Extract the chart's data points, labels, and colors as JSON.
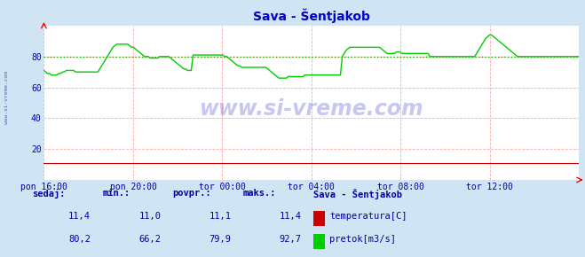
{
  "title": "Sava - Šentjakob",
  "bg_color": "#d0e4f4",
  "plot_bg_color": "#ffffff",
  "grid_color": "#ffaaaa",
  "avg_line_color": "#00bb00",
  "avg_line_value": 79.9,
  "x_labels": [
    "pon 16:00",
    "pon 20:00",
    "tor 00:00",
    "tor 04:00",
    "tor 08:00",
    "tor 12:00"
  ],
  "x_ticks_norm": [
    0.0,
    0.1667,
    0.3333,
    0.5,
    0.6667,
    0.8333
  ],
  "ylim": [
    0,
    100
  ],
  "yticks": [
    20,
    40,
    60,
    80
  ],
  "temp_color": "#cc0000",
  "flow_color": "#00cc00",
  "title_color": "#0000cc",
  "label_color": "#0000aa",
  "watermark_color": "#0000cc",
  "table_header_color": "#0000aa",
  "sedaj_label": "sedaj:",
  "min_label": "min.:",
  "povpr_label": "povpr.:",
  "maks_label": "maks.:",
  "station_label": "Sava - Šentjakob",
  "temp_label": "temperatura[C]",
  "flow_label": "pretok[m3/s]",
  "temp_sedaj": "11,4",
  "temp_min": "11,0",
  "temp_povpr": "11,1",
  "temp_maks": "11,4",
  "flow_sedaj": "80,2",
  "flow_min": "66,2",
  "flow_povpr": "79,9",
  "flow_maks": "92,7",
  "n_points": 288,
  "flow_data": [
    71,
    70,
    69,
    69,
    68,
    68,
    68,
    68,
    69,
    69,
    70,
    70,
    71,
    71,
    71,
    71,
    71,
    70,
    70,
    70,
    70,
    70,
    70,
    70,
    70,
    70,
    70,
    70,
    70,
    70,
    72,
    74,
    76,
    78,
    80,
    82,
    84,
    86,
    87,
    88,
    88,
    88,
    88,
    88,
    88,
    88,
    87,
    86,
    86,
    85,
    84,
    83,
    82,
    81,
    80,
    80,
    80,
    79,
    79,
    79,
    79,
    79,
    80,
    80,
    80,
    80,
    80,
    80,
    79,
    78,
    77,
    76,
    75,
    74,
    73,
    72,
    72,
    71,
    71,
    71,
    81,
    81,
    81,
    81,
    81,
    81,
    81,
    81,
    81,
    81,
    81,
    81,
    81,
    81,
    81,
    81,
    81,
    80,
    80,
    79,
    78,
    77,
    76,
    75,
    74,
    74,
    73,
    73,
    73,
    73,
    73,
    73,
    73,
    73,
    73,
    73,
    73,
    73,
    73,
    73,
    72,
    71,
    70,
    69,
    68,
    67,
    66,
    66,
    66,
    66,
    66,
    67,
    67,
    67,
    67,
    67,
    67,
    67,
    67,
    67,
    68,
    68,
    68,
    68,
    68,
    68,
    68,
    68,
    68,
    68,
    68,
    68,
    68,
    68,
    68,
    68,
    68,
    68,
    68,
    68,
    80,
    82,
    84,
    85,
    86,
    86,
    86,
    86,
    86,
    86,
    86,
    86,
    86,
    86,
    86,
    86,
    86,
    86,
    86,
    86,
    86,
    85,
    84,
    83,
    82,
    82,
    82,
    82,
    82,
    83,
    83,
    83,
    82,
    82,
    82,
    82,
    82,
    82,
    82,
    82,
    82,
    82,
    82,
    82,
    82,
    82,
    82,
    80,
    80,
    80,
    80,
    80,
    80,
    80,
    80,
    80,
    80,
    80,
    80,
    80,
    80,
    80,
    80,
    80,
    80,
    80,
    80,
    80,
    80,
    80,
    80,
    80,
    82,
    84,
    86,
    88,
    90,
    92,
    93,
    94,
    94,
    93,
    92,
    91,
    90,
    89,
    88,
    87,
    86,
    85,
    84,
    83,
    82,
    81,
    80,
    80,
    80,
    80,
    80,
    80,
    80,
    80,
    80,
    80,
    80,
    80,
    80,
    80,
    80,
    80,
    80,
    80,
    80,
    80,
    80,
    80,
    80,
    80,
    80,
    80,
    80,
    80,
    80,
    80,
    80,
    80,
    80,
    80
  ],
  "temp_data": [
    11,
    11,
    11,
    11,
    11,
    11,
    11,
    11,
    11,
    11,
    11,
    11,
    11,
    11,
    11,
    11,
    11,
    11,
    11,
    11,
    11,
    11,
    11,
    11,
    11,
    11,
    11,
    11,
    11,
    11,
    11,
    11,
    11,
    11,
    11,
    11,
    11,
    11,
    11,
    11,
    11,
    11,
    11,
    11,
    11,
    11,
    11,
    11,
    11,
    11,
    11,
    11,
    11,
    11,
    11,
    11,
    11,
    11,
    11,
    11,
    11,
    11,
    11,
    11,
    11,
    11,
    11,
    11,
    11,
    11,
    11,
    11,
    11,
    11,
    11,
    11,
    11,
    11,
    11,
    11,
    11,
    11,
    11,
    11,
    11,
    11,
    11,
    11,
    11,
    11,
    11,
    11,
    11,
    11,
    11,
    11,
    11,
    11,
    11,
    11,
    11,
    11,
    11,
    11,
    11,
    11,
    11,
    11,
    11,
    11,
    11,
    11,
    11,
    11,
    11,
    11,
    11,
    11,
    11,
    11,
    11,
    11,
    11,
    11,
    11,
    11,
    11,
    11,
    11,
    11,
    11,
    11,
    11,
    11,
    11,
    11,
    11,
    11,
    11,
    11,
    11,
    11,
    11,
    11,
    11,
    11,
    11,
    11,
    11,
    11,
    11,
    11,
    11,
    11,
    11,
    11,
    11,
    11,
    11,
    11,
    11,
    11,
    11,
    11,
    11,
    11,
    11,
    11,
    11,
    11,
    11,
    11,
    11,
    11,
    11,
    11,
    11,
    11,
    11,
    11,
    11,
    11,
    11,
    11,
    11,
    11,
    11,
    11,
    11,
    11,
    11,
    11,
    11,
    11,
    11,
    11,
    11,
    11,
    11,
    11,
    11,
    11,
    11,
    11,
    11,
    11,
    11,
    11,
    11,
    11,
    11,
    11,
    11,
    11,
    11,
    11,
    11,
    11,
    11,
    11,
    11,
    11,
    11,
    11,
    11,
    11,
    11,
    11,
    11,
    11,
    11,
    11,
    11,
    11,
    11,
    11,
    11,
    11,
    11,
    11,
    11,
    11,
    11,
    11,
    11,
    11,
    11,
    11,
    11,
    11,
    11,
    11,
    11,
    11,
    11,
    11,
    11,
    11,
    11,
    11,
    11,
    11,
    11,
    11,
    11,
    11,
    11,
    11,
    11,
    11,
    11,
    11,
    11,
    11,
    11,
    11,
    11,
    11,
    11,
    11,
    11,
    11,
    11,
    11,
    11,
    11,
    11,
    11
  ]
}
